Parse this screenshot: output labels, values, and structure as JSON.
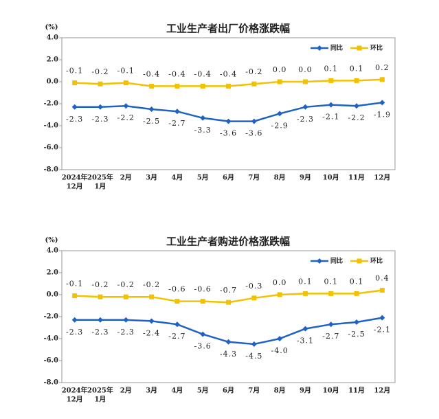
{
  "chart_data": [
    {
      "type": "line",
      "title": "工业生产者出厂价格涨跌幅",
      "y_label": "(%)",
      "categories": [
        [
          "2024年",
          "12月"
        ],
        [
          "2025年",
          "1月"
        ],
        [
          "2月"
        ],
        [
          "3月"
        ],
        [
          "4月"
        ],
        [
          "5月"
        ],
        [
          "6月"
        ],
        [
          "7月"
        ],
        [
          "8月"
        ],
        [
          "9月"
        ],
        [
          "10月"
        ],
        [
          "11月"
        ],
        [
          "12月"
        ]
      ],
      "ylim": [
        -8,
        4
      ],
      "yticks": [
        {
          "value": 4,
          "label": "4.0"
        },
        {
          "value": 2,
          "label": "2.0"
        },
        {
          "value": 0,
          "label": "0.0"
        },
        {
          "value": -2,
          "label": "-2.0"
        },
        {
          "value": -4,
          "label": "-4.0"
        },
        {
          "value": -6,
          "label": "-6.0"
        },
        {
          "value": -8,
          "label": "-8.0"
        }
      ],
      "legend": "top-right",
      "grid": false,
      "series": [
        {
          "name": "同比",
          "color": "#1f62c4",
          "marker": "diamond",
          "values": [
            -2.3,
            -2.3,
            -2.2,
            -2.5,
            -2.7,
            -3.3,
            -3.6,
            -3.6,
            -2.9,
            -2.3,
            -2.1,
            -2.2,
            -1.9
          ],
          "value_labels": [
            "-2.3",
            "-2.3",
            "-2.2",
            "-2.5",
            "-2.7",
            "-3.3",
            "-3.6",
            "-3.6",
            "-2.9",
            "-2.3",
            "-2.1",
            "-2.2",
            "-1.9"
          ]
        },
        {
          "name": "环比",
          "color": "#f2c200",
          "marker": "square",
          "values": [
            -0.1,
            -0.2,
            -0.1,
            -0.4,
            -0.4,
            -0.4,
            -0.4,
            -0.2,
            0,
            0,
            0.1,
            0.1,
            0.2
          ],
          "value_labels": [
            "-0.1",
            "-0.2",
            "-0.1",
            "-0.4",
            "-0.4",
            "-0.4",
            "-0.4",
            "-0.2",
            "0.0",
            "0.0",
            "0.1",
            "0.1",
            "0.2"
          ]
        }
      ]
    },
    {
      "type": "line",
      "title": "工业生产者购进价格涨跌幅",
      "y_label": "(%)",
      "categories": [
        [
          "2024年",
          "12月"
        ],
        [
          "2025年",
          "1月"
        ],
        [
          "2月"
        ],
        [
          "3月"
        ],
        [
          "4月"
        ],
        [
          "5月"
        ],
        [
          "6月"
        ],
        [
          "7月"
        ],
        [
          "8月"
        ],
        [
          "9月"
        ],
        [
          "10月"
        ],
        [
          "11月"
        ],
        [
          "12月"
        ]
      ],
      "ylim": [
        -8,
        4
      ],
      "yticks": [
        {
          "value": 4,
          "label": "4.0"
        },
        {
          "value": 2,
          "label": "2.0"
        },
        {
          "value": 0,
          "label": "0.0"
        },
        {
          "value": -2,
          "label": "-2.0"
        },
        {
          "value": -4,
          "label": "-4.0"
        },
        {
          "value": -6,
          "label": "-6.0"
        },
        {
          "value": -8,
          "label": "-8.0"
        }
      ],
      "legend": "top-right",
      "grid": false,
      "series": [
        {
          "name": "同比",
          "color": "#1f62c4",
          "marker": "diamond",
          "values": [
            -2.3,
            -2.3,
            -2.3,
            -2.4,
            -2.7,
            -3.6,
            -4.3,
            -4.5,
            -4.0,
            -3.1,
            -2.7,
            -2.5,
            -2.1
          ],
          "value_labels": [
            "-2.3",
            "-2.3",
            "-2.3",
            "-2.4",
            "-2.7",
            "-3.6",
            "-4.3",
            "-4.5",
            "-4.0",
            "-3.1",
            "-2.7",
            "-2.5",
            "-2.1"
          ]
        },
        {
          "name": "环比",
          "color": "#f2c200",
          "marker": "square",
          "values": [
            -0.1,
            -0.2,
            -0.2,
            -0.2,
            -0.6,
            -0.6,
            -0.7,
            -0.3,
            0,
            0.1,
            0.1,
            0.1,
            0.4
          ],
          "value_labels": [
            "-0.1",
            "-0.2",
            "-0.2",
            "-0.2",
            "-0.6",
            "-0.6",
            "-0.7",
            "-0.3",
            "0.0",
            "0.1",
            "0.1",
            "0.1",
            "0.4"
          ]
        }
      ]
    }
  ]
}
